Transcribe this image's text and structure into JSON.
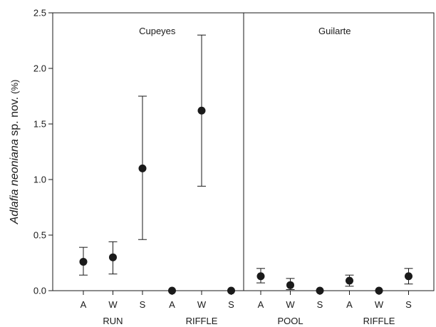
{
  "chart_data": {
    "type": "scatter",
    "ylabel": {
      "species": "Adlafia neoniana",
      "rest": " sp. nov.",
      "unit": "(%)"
    },
    "ylim": [
      0,
      2.5
    ],
    "yticks": [
      "0.0",
      "0.5",
      "1.0",
      "1.5",
      "2.0",
      "2.5"
    ],
    "grid": false,
    "panels": [
      {
        "name": "Cupeyes",
        "groups": [
          {
            "label": "RUN",
            "points": [
              {
                "category": "A",
                "y": 0.26,
                "err_low": 0.14,
                "err_high": 0.39
              },
              {
                "category": "W",
                "y": 0.3,
                "err_low": 0.15,
                "err_high": 0.44
              },
              {
                "category": "S",
                "y": 1.1,
                "err_low": 0.46,
                "err_high": 1.75
              }
            ]
          },
          {
            "label": "RIFFLE",
            "points": [
              {
                "category": "A",
                "y": 0.0,
                "err_low": 0.0,
                "err_high": 0.0
              },
              {
                "category": "W",
                "y": 1.62,
                "err_low": 0.94,
                "err_high": 2.3
              },
              {
                "category": "S",
                "y": 0.0,
                "err_low": 0.0,
                "err_high": 0.0
              }
            ]
          }
        ]
      },
      {
        "name": "Guilarte",
        "groups": [
          {
            "label": "POOL",
            "points": [
              {
                "category": "A",
                "y": 0.13,
                "err_low": 0.07,
                "err_high": 0.2
              },
              {
                "category": "W",
                "y": 0.05,
                "err_low": 0.01,
                "err_high": 0.11
              },
              {
                "category": "S",
                "y": 0.0,
                "err_low": 0.0,
                "err_high": 0.0
              }
            ]
          },
          {
            "label": "RIFFLE",
            "points": [
              {
                "category": "A",
                "y": 0.09,
                "err_low": 0.04,
                "err_high": 0.14
              },
              {
                "category": "W",
                "y": 0.0,
                "err_low": 0.0,
                "err_high": 0.0
              },
              {
                "category": "S",
                "y": 0.13,
                "err_low": 0.06,
                "err_high": 0.2
              }
            ]
          }
        ]
      }
    ]
  }
}
